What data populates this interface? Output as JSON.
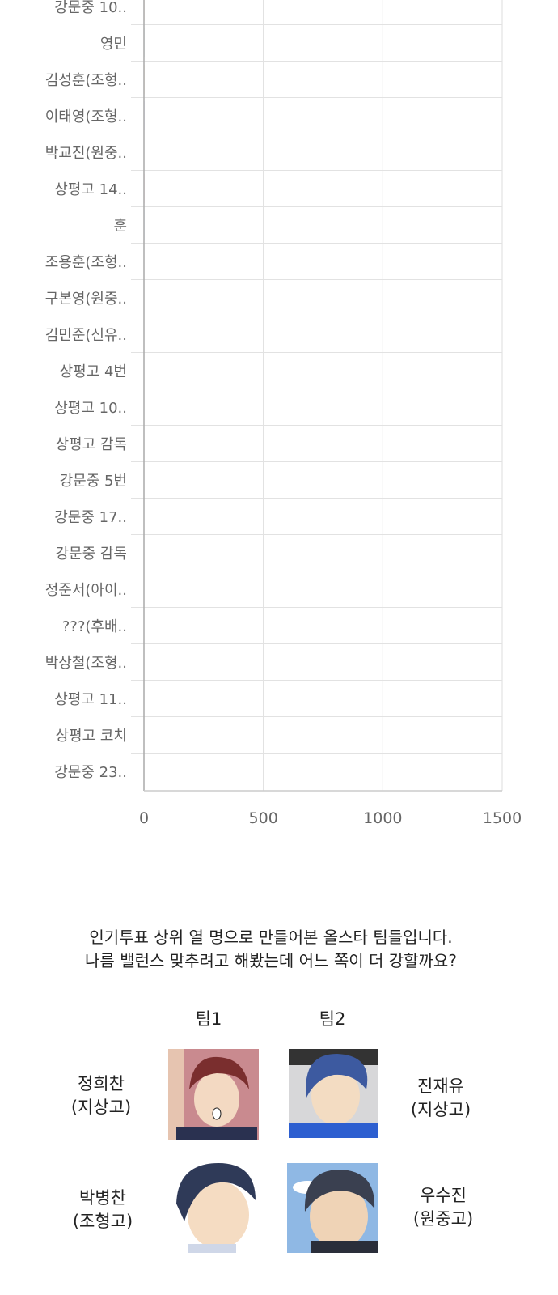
{
  "chart_data": {
    "type": "bar",
    "orientation": "horizontal",
    "categories": [
      "강문중 10..",
      "영민",
      "김성훈(조형..",
      "이태영(조형..",
      "박교진(원중..",
      "상평고 14..",
      "훈",
      "조용훈(조형..",
      "구본영(원중..",
      "김민준(신유..",
      "상평고 4번",
      "상평고 10..",
      "상평고 감독",
      "강문중 5번",
      "강문중 17..",
      "강문중 감독",
      "정준서(아이..",
      "???(후배..",
      "박상철(조형..",
      "상평고 11..",
      "상평고 코치",
      "강문중 23.."
    ],
    "values": [
      2,
      2,
      2,
      2,
      1,
      2,
      2,
      1,
      1,
      1,
      1,
      1,
      1,
      1,
      0,
      0,
      0,
      0,
      0,
      0,
      0,
      0
    ],
    "colors": [
      "#e8c48a",
      "#8ec6c6",
      "#e2b47a",
      "#9a8fd6",
      "#a0a0a0",
      "#e49aa8",
      "#8cb4d8",
      "#b0b0b0",
      "#b0b0b0",
      "#b0b0b0",
      "#b0b0b0",
      "#b0b0b0",
      "#b0b0b0",
      "#b0b0b0",
      "#b0b0b0",
      "#b0b0b0",
      "#b0b0b0",
      "#b0b0b0",
      "#b0b0b0",
      "#b0b0b0",
      "#b0b0b0",
      "#b0b0b0"
    ],
    "xlim": [
      0,
      1500
    ],
    "xticks": [
      "0",
      "500",
      "1000",
      "1500"
    ],
    "grid": true
  },
  "caption": {
    "line1": "인기투표 상위 열 명으로 만들어본 올스타 팀들입니다.",
    "line2": "나름 밸런스 맞추려고 해봤는데 어느 쪽이 더 강할까요?"
  },
  "teams": {
    "team1": "팀1",
    "team2": "팀2"
  },
  "players": [
    {
      "name": "정희찬",
      "school": "(지상고)"
    },
    {
      "name": "진재유",
      "school": "(지상고)"
    },
    {
      "name": "박병찬",
      "school": "(조형고)"
    },
    {
      "name": "우수진",
      "school": "(원중고)"
    }
  ]
}
